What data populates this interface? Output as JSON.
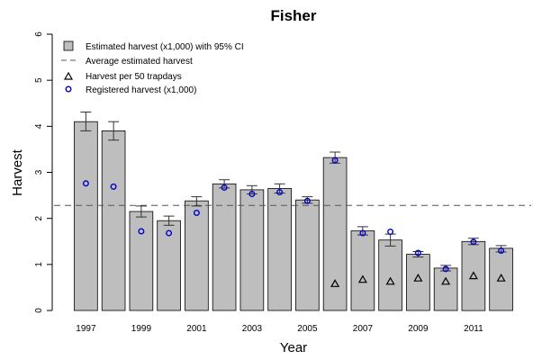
{
  "chart_data": {
    "type": "bar",
    "title": "Fisher",
    "xlabel": "Year",
    "ylabel": "Harvest",
    "ylim": [
      0,
      6
    ],
    "yticks": [
      "0",
      "1",
      "2",
      "3",
      "4",
      "5",
      "6"
    ],
    "categories": [
      "1997",
      "1998",
      "1999",
      "2000",
      "2001",
      "2002",
      "2003",
      "2004",
      "2005",
      "2006",
      "2007",
      "2008",
      "2009",
      "2010",
      "2011",
      "2012"
    ],
    "x_tick_labels": [
      "1997",
      "1999",
      "2001",
      "2003",
      "2005",
      "2007",
      "2009",
      "2011"
    ],
    "average_estimated_harvest": 2.28,
    "series": [
      {
        "name": "Estimated harvest (x1,000) with 95% CI",
        "kind": "bar",
        "values": [
          4.1,
          3.9,
          2.15,
          1.95,
          2.38,
          2.75,
          2.62,
          2.65,
          2.4,
          3.32,
          1.73,
          1.53,
          1.22,
          0.92,
          1.5,
          1.35
        ],
        "ci_low": [
          3.9,
          3.7,
          2.03,
          1.85,
          2.27,
          2.66,
          2.53,
          2.55,
          2.33,
          3.2,
          1.64,
          1.4,
          1.16,
          0.86,
          1.43,
          1.27
        ],
        "ci_high": [
          4.31,
          4.1,
          2.27,
          2.05,
          2.47,
          2.84,
          2.71,
          2.75,
          2.47,
          3.44,
          1.82,
          1.66,
          1.28,
          0.98,
          1.57,
          1.41
        ],
        "color": "#bebebe"
      },
      {
        "name": "Harvest per 50 trapdays",
        "kind": "triangle",
        "values": [
          null,
          null,
          null,
          null,
          null,
          null,
          null,
          null,
          null,
          0.58,
          0.67,
          0.63,
          0.7,
          0.63,
          0.75,
          0.7
        ],
        "color": "#000000"
      },
      {
        "name": "Registered harvest (x1,000)",
        "kind": "circle",
        "values": [
          2.76,
          2.69,
          1.72,
          1.68,
          2.12,
          2.67,
          2.53,
          2.57,
          2.38,
          3.26,
          1.68,
          1.71,
          1.25,
          0.9,
          1.49,
          1.3
        ],
        "color": "#0000cc"
      }
    ],
    "legend": {
      "placement": "top-left",
      "entries": [
        "Estimated harvest (x1,000) with 95% CI",
        "Average estimated harvest",
        "Harvest per 50 trapdays",
        "Registered harvest (x1,000)"
      ]
    },
    "grid": false
  }
}
